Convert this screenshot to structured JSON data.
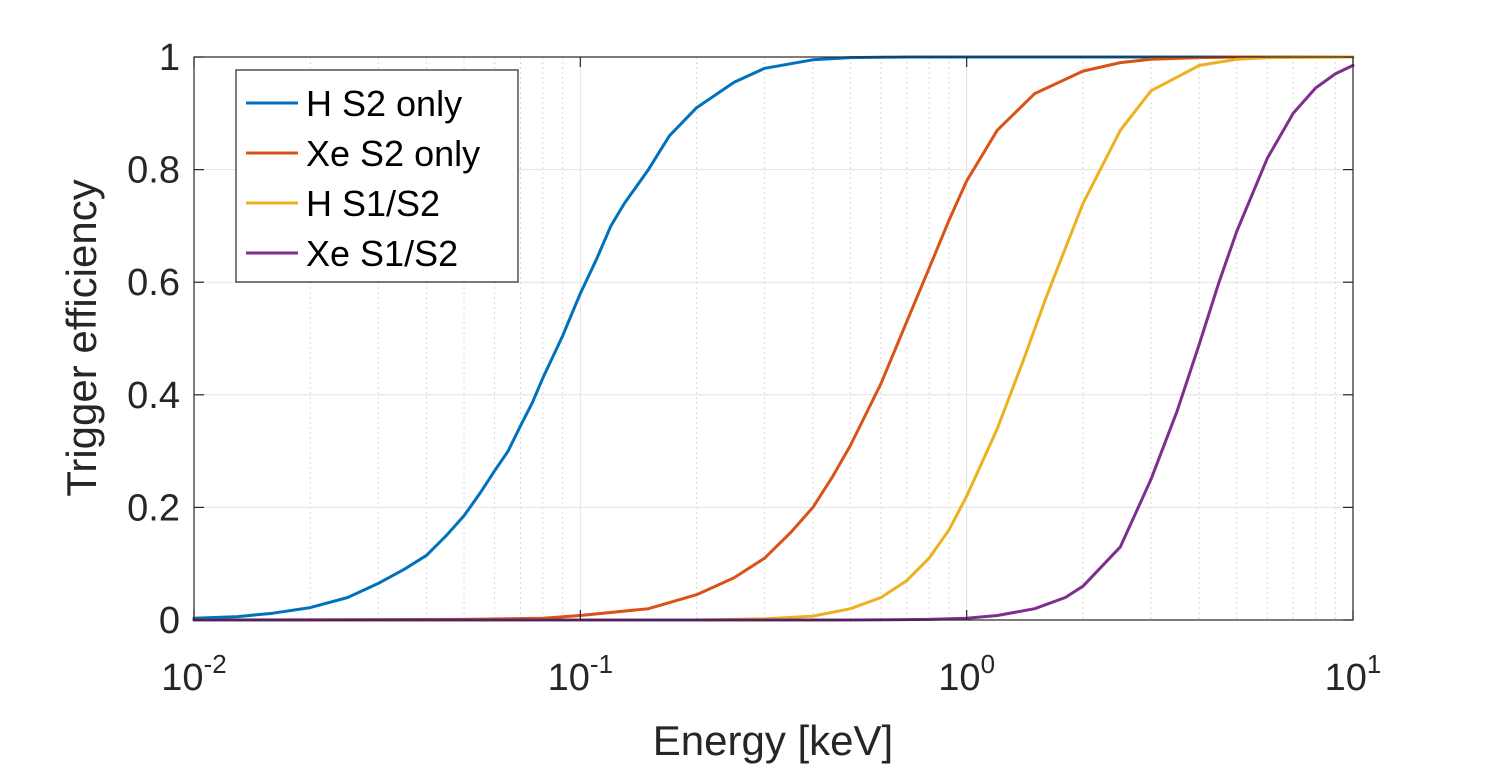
{
  "chart_data": {
    "type": "line",
    "xlabel": "Energy [keV]",
    "ylabel": "Trigger efficiency",
    "xscale": "log",
    "xlim": [
      0.01,
      10
    ],
    "ylim": [
      0,
      1
    ],
    "x_ticks": [
      {
        "value": 0.01,
        "base": "10",
        "exp": "-2"
      },
      {
        "value": 0.1,
        "base": "10",
        "exp": "-1"
      },
      {
        "value": 1,
        "base": "10",
        "exp": "0"
      },
      {
        "value": 10,
        "base": "10",
        "exp": "1"
      }
    ],
    "y_ticks": [
      "0",
      "0.2",
      "0.4",
      "0.6",
      "0.8",
      "1"
    ],
    "grid": true,
    "legend_position": "top-left",
    "series": [
      {
        "name": "H S2 only",
        "color": "#0072bd",
        "x": [
          0.01,
          0.013,
          0.016,
          0.02,
          0.025,
          0.03,
          0.035,
          0.04,
          0.045,
          0.05,
          0.055,
          0.06,
          0.065,
          0.07,
          0.075,
          0.08,
          0.09,
          0.1,
          0.11,
          0.12,
          0.13,
          0.15,
          0.17,
          0.2,
          0.25,
          0.3,
          0.4,
          0.5,
          0.7,
          1,
          10
        ],
        "y": [
          0.003,
          0.006,
          0.012,
          0.022,
          0.04,
          0.065,
          0.09,
          0.115,
          0.15,
          0.185,
          0.225,
          0.265,
          0.3,
          0.345,
          0.385,
          0.43,
          0.505,
          0.58,
          0.64,
          0.7,
          0.74,
          0.8,
          0.86,
          0.91,
          0.955,
          0.98,
          0.995,
          0.999,
          1.0,
          1.0,
          1.0
        ]
      },
      {
        "name": "Xe S2 only",
        "color": "#d95319",
        "x": [
          0.01,
          0.05,
          0.08,
          0.1,
          0.15,
          0.2,
          0.25,
          0.3,
          0.35,
          0.4,
          0.45,
          0.5,
          0.6,
          0.7,
          0.8,
          0.9,
          1.0,
          1.2,
          1.5,
          2.0,
          2.5,
          3.0,
          4.0,
          5.0,
          10
        ],
        "y": [
          0.0,
          0.001,
          0.003,
          0.008,
          0.02,
          0.045,
          0.075,
          0.11,
          0.155,
          0.2,
          0.255,
          0.31,
          0.42,
          0.53,
          0.625,
          0.71,
          0.78,
          0.87,
          0.935,
          0.975,
          0.99,
          0.996,
          0.999,
          1.0,
          1.0
        ]
      },
      {
        "name": "H S1/S2",
        "color": "#edb120",
        "x": [
          0.01,
          0.2,
          0.3,
          0.4,
          0.5,
          0.6,
          0.7,
          0.8,
          0.9,
          1.0,
          1.2,
          1.4,
          1.6,
          1.8,
          2.0,
          2.5,
          3.0,
          4.0,
          5.0,
          6.0,
          10
        ],
        "y": [
          0.0,
          0.0,
          0.002,
          0.007,
          0.02,
          0.04,
          0.07,
          0.11,
          0.16,
          0.22,
          0.34,
          0.46,
          0.57,
          0.66,
          0.74,
          0.87,
          0.94,
          0.985,
          0.996,
          0.999,
          1.0
        ]
      },
      {
        "name": "Xe S1/S2",
        "color": "#7e2f8e",
        "x": [
          0.01,
          0.5,
          0.8,
          1.0,
          1.2,
          1.5,
          1.8,
          2.0,
          2.5,
          3.0,
          3.5,
          4.0,
          4.5,
          5.0,
          6.0,
          7.0,
          8.0,
          9.0,
          10
        ],
        "y": [
          0.0,
          0.0,
          0.001,
          0.003,
          0.008,
          0.02,
          0.04,
          0.06,
          0.13,
          0.25,
          0.37,
          0.49,
          0.6,
          0.69,
          0.82,
          0.9,
          0.945,
          0.97,
          0.985
        ]
      }
    ]
  }
}
